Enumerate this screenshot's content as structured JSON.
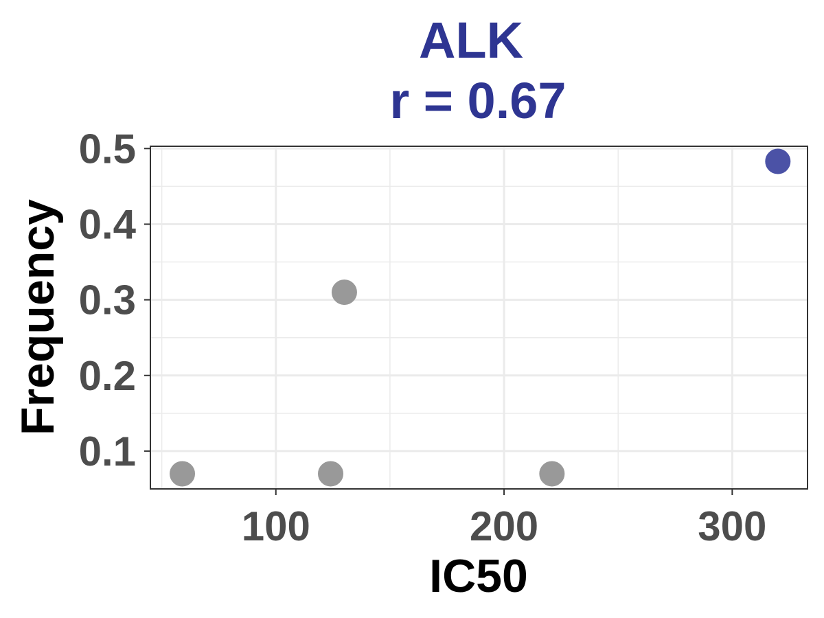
{
  "chart_data": {
    "type": "scatter",
    "title": "ALK",
    "subtitle": "r = 0.67",
    "xlabel": "IC50",
    "ylabel": "Frequency",
    "xlim": [
      45,
      333
    ],
    "ylim": [
      0.05,
      0.503
    ],
    "xticks": [
      100,
      200,
      300
    ],
    "xtick_labels": [
      "100",
      "200",
      "300"
    ],
    "yticks": [
      0.1,
      0.2,
      0.3,
      0.4,
      0.5
    ],
    "ytick_labels": [
      "0.1",
      "0.2",
      "0.3",
      "0.4",
      "0.5"
    ],
    "grid": true,
    "legend": "none",
    "points": [
      {
        "x": 59,
        "y": 0.07,
        "highlight": false
      },
      {
        "x": 124,
        "y": 0.07,
        "highlight": false
      },
      {
        "x": 130,
        "y": 0.31,
        "highlight": false
      },
      {
        "x": 221,
        "y": 0.07,
        "highlight": false
      },
      {
        "x": 320,
        "y": 0.483,
        "highlight": true
      }
    ]
  },
  "colors": {
    "title": "#2e3592",
    "point_default": "#999999",
    "point_highlight": "#4b52a6",
    "grid": "#ebebeb",
    "panel_border": "#333333",
    "tick_text": "#4d4d4d",
    "axis_title": "#000000"
  }
}
